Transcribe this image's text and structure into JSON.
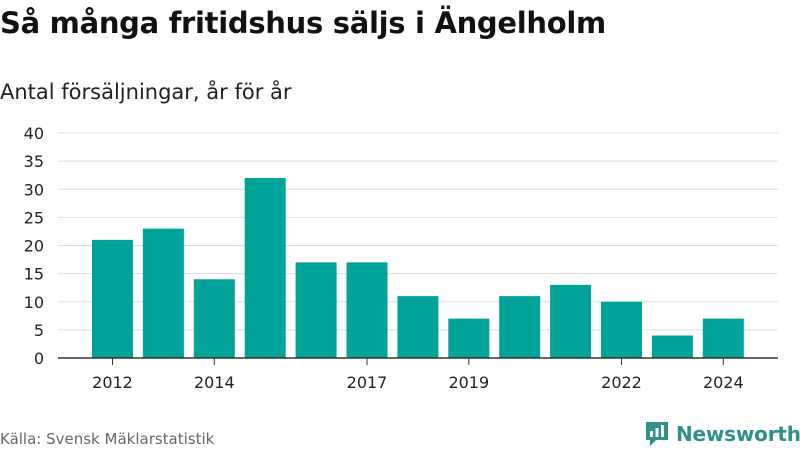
{
  "title": "Så många fritidshus säljs i Ängelholm",
  "subtitle": "Antal försäljningar, år för år",
  "source": "Källa: Svensk Mäklarstatistik",
  "brand": {
    "name": "Newsworthy",
    "icon": "newsworthy-logo-icon",
    "color": "#2f8f8a"
  },
  "colors": {
    "bar": "#00a39a",
    "grid": "#dddddd",
    "axis": "#333333"
  },
  "chart_data": {
    "type": "bar",
    "x": [
      2012,
      2013,
      2014,
      2015,
      2016,
      2017,
      2018,
      2019,
      2020,
      2021,
      2022,
      2023,
      2024
    ],
    "values": [
      21,
      23,
      14,
      32,
      17,
      17,
      11,
      7,
      11,
      13,
      10,
      4,
      7
    ],
    "x_tick_labels": [
      {
        "year": 2012,
        "label": "2012"
      },
      {
        "year": 2014,
        "label": "2014"
      },
      {
        "year": 2017,
        "label": "2017"
      },
      {
        "year": 2019,
        "label": "2019"
      },
      {
        "year": 2022,
        "label": "2022"
      },
      {
        "year": 2024,
        "label": "2024"
      }
    ],
    "y_ticks": [
      0,
      5,
      10,
      15,
      20,
      25,
      30,
      35,
      40
    ],
    "ylim": [
      0,
      40
    ],
    "grid": true,
    "xlabel": "",
    "ylabel": ""
  }
}
